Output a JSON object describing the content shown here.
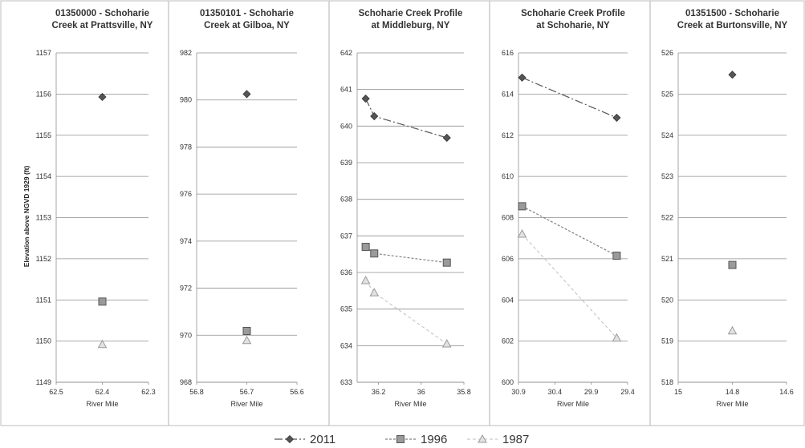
{
  "legend": [
    {
      "name": "2011",
      "marker": "diamond",
      "color": "#555555",
      "dash": "10,3,2,3"
    },
    {
      "name": "1996",
      "marker": "square",
      "color": "#808080",
      "dash": "3,2"
    },
    {
      "name": "1987",
      "marker": "triangle",
      "color": "#c9c9c9",
      "dash": "4,3"
    }
  ],
  "ylabel": "Elevation above NGVD 1929 (ft)",
  "chart_data": [
    {
      "type": "scatter",
      "title": [
        "01350000 - Schoharie",
        "Creek at Prattsville, NY"
      ],
      "xlabel": "River Mile",
      "xlim": [
        62.5,
        62.3
      ],
      "xticks": [
        "62.5",
        "62.4",
        "62.3"
      ],
      "xtick_values": [
        62.5,
        62.4,
        62.3
      ],
      "ylim": [
        1149,
        1157
      ],
      "yticks": [
        1149,
        1150,
        1151,
        1152,
        1153,
        1154,
        1155,
        1156,
        1157
      ],
      "series": [
        {
          "name": "2011",
          "points": [
            [
              62.4,
              1155.93
            ]
          ]
        },
        {
          "name": "1996",
          "points": [
            [
              62.4,
              1150.96
            ]
          ]
        },
        {
          "name": "1987",
          "points": [
            [
              62.4,
              1149.92
            ]
          ]
        }
      ]
    },
    {
      "type": "scatter",
      "title": [
        "01350101 - Schoharie",
        "Creek at Gilboa, NY"
      ],
      "xlabel": "River Mile",
      "xlim": [
        56.8,
        56.6
      ],
      "xticks": [
        "56.8",
        "56.7",
        "56.6"
      ],
      "xtick_values": [
        56.8,
        56.7,
        56.6
      ],
      "ylim": [
        968,
        982
      ],
      "yticks": [
        968,
        970,
        972,
        974,
        976,
        978,
        980,
        982
      ],
      "series": [
        {
          "name": "2011",
          "points": [
            [
              56.7,
              980.25
            ]
          ]
        },
        {
          "name": "1996",
          "points": [
            [
              56.7,
              970.18
            ]
          ]
        },
        {
          "name": "1987",
          "points": [
            [
              56.7,
              969.78
            ]
          ]
        }
      ]
    },
    {
      "type": "line",
      "title": [
        "Schoharie Creek Profile",
        "at Middleburg, NY"
      ],
      "xlabel": "River Mile",
      "xlim": [
        36.3,
        35.8
      ],
      "xticks": [
        "36.2",
        "36",
        "35.8"
      ],
      "xtick_values": [
        36.2,
        36.0,
        35.8
      ],
      "ylim": [
        633,
        642
      ],
      "yticks": [
        633,
        634,
        635,
        636,
        637,
        638,
        639,
        640,
        641,
        642
      ],
      "series": [
        {
          "name": "2011",
          "points": [
            [
              36.26,
              640.75
            ],
            [
              36.22,
              640.27
            ],
            [
              35.88,
              639.68
            ]
          ]
        },
        {
          "name": "1996",
          "points": [
            [
              36.26,
              636.7
            ],
            [
              36.22,
              636.52
            ],
            [
              35.88,
              636.27
            ]
          ]
        },
        {
          "name": "1987",
          "points": [
            [
              36.26,
              635.78
            ],
            [
              36.22,
              635.45
            ],
            [
              35.88,
              634.05
            ]
          ]
        }
      ]
    },
    {
      "type": "line",
      "title": [
        "Schoharie Creek Profile",
        "at Schoharie, NY"
      ],
      "xlabel": "River Mile",
      "xlim": [
        30.9,
        29.4
      ],
      "xticks": [
        "30.9",
        "30.4",
        "29.9",
        "29.4"
      ],
      "xtick_values": [
        30.9,
        30.4,
        29.9,
        29.4
      ],
      "ylim": [
        600,
        616
      ],
      "yticks": [
        600,
        602,
        604,
        606,
        608,
        610,
        612,
        614,
        616
      ],
      "series": [
        {
          "name": "2011",
          "points": [
            [
              30.85,
              614.8
            ],
            [
              29.55,
              612.85
            ]
          ]
        },
        {
          "name": "1996",
          "points": [
            [
              30.85,
              608.55
            ],
            [
              29.55,
              606.15
            ]
          ]
        },
        {
          "name": "1987",
          "points": [
            [
              30.85,
              607.2
            ],
            [
              29.55,
              602.15
            ]
          ]
        }
      ]
    },
    {
      "type": "scatter",
      "title": [
        "01351500 - Schoharie",
        "Creek at Burtonsville, NY"
      ],
      "xlabel": "River Mile",
      "xlim": [
        15,
        14.6
      ],
      "xticks": [
        "15",
        "14.8",
        "14.6"
      ],
      "xtick_values": [
        15,
        14.8,
        14.6
      ],
      "ylim": [
        518,
        526
      ],
      "yticks": [
        518,
        519,
        520,
        521,
        522,
        523,
        524,
        525,
        526
      ],
      "series": [
        {
          "name": "2011",
          "points": [
            [
              14.8,
              525.47
            ]
          ]
        },
        {
          "name": "1996",
          "points": [
            [
              14.8,
              520.85
            ]
          ]
        },
        {
          "name": "1987",
          "points": [
            [
              14.8,
              519.25
            ]
          ]
        }
      ]
    }
  ]
}
